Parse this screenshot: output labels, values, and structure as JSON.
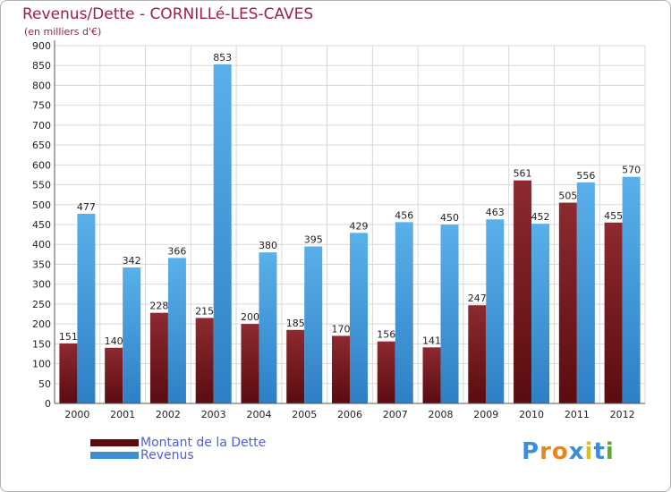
{
  "chart_data": {
    "type": "bar",
    "title": "Revenus/Dette - CORNILLé-LES-CAVES",
    "subtitle": "(en milliers d'€)",
    "categories": [
      "2000",
      "2001",
      "2002",
      "2003",
      "2004",
      "2005",
      "2006",
      "2007",
      "2008",
      "2009",
      "2010",
      "2011",
      "2012"
    ],
    "series": [
      {
        "name": "Montant de la Dette",
        "color": "#7a1c22",
        "values": [
          151,
          140,
          228,
          215,
          200,
          185,
          170,
          156,
          141,
          247,
          561,
          505,
          455
        ]
      },
      {
        "name": "Revenus",
        "color": "#4aa3e0",
        "values": [
          477,
          342,
          366,
          853,
          380,
          395,
          429,
          456,
          450,
          463,
          452,
          556,
          570
        ]
      }
    ],
    "ylim": [
      0,
      900
    ],
    "ytick_step": 50,
    "grid": true,
    "legend_position": "bottom-left"
  },
  "legend": {
    "items": [
      {
        "label": "Montant de la Dette",
        "color": "#5c0a0e"
      },
      {
        "label": "Revenus",
        "color": "#3d8fd4"
      }
    ]
  },
  "logo": {
    "text": "Proxiti"
  }
}
